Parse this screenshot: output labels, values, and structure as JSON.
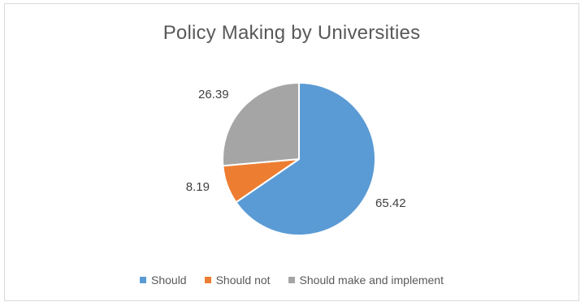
{
  "chart_data": {
    "type": "pie",
    "title": "Policy Making by Universities",
    "categories": [
      "Should",
      "Should not",
      "Should make and implement"
    ],
    "values": [
      65.42,
      8.19,
      26.39
    ],
    "labels": [
      "65.42",
      "8.19",
      "26.39"
    ],
    "colors": [
      "#5b9bd5",
      "#ed7d31",
      "#a5a5a5"
    ],
    "legend_position": "bottom"
  }
}
